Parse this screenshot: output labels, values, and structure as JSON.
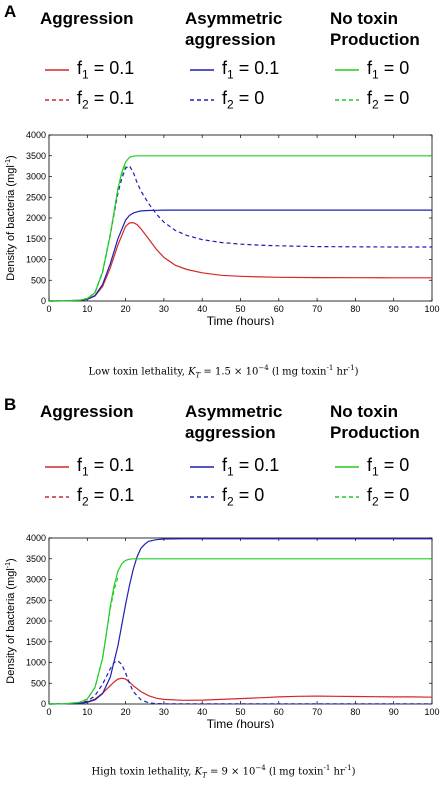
{
  "panels": [
    {
      "letter": "A",
      "groups": [
        {
          "title_lines": [
            "Aggression"
          ],
          "entries": [
            {
              "label": "f1 = 0.1",
              "sub": "1",
              "value": "0.1",
              "color": "#d62728",
              "dash": false
            },
            {
              "label": "f2 = 0.1",
              "sub": "2",
              "value": "0.1",
              "color": "#d62728",
              "dash": true
            }
          ]
        },
        {
          "title_lines": [
            "Asymmetric",
            "aggression"
          ],
          "entries": [
            {
              "label": "f1 = 0.1",
              "sub": "1",
              "value": "0.1",
              "color": "#1f1fb4",
              "dash": false
            },
            {
              "label": "f2 = 0",
              "sub": "2",
              "value": "0",
              "color": "#1f1fb4",
              "dash": true
            }
          ]
        },
        {
          "title_lines": [
            "No toxin",
            "Production"
          ],
          "entries": [
            {
              "label": "f1 = 0",
              "sub": "1",
              "value": "0",
              "color": "#22cc22",
              "dash": false
            },
            {
              "label": "f2 = 0",
              "sub": "2",
              "value": "0",
              "color": "#22cc22",
              "dash": true
            }
          ]
        }
      ],
      "caption": "Low toxin lethality, K_T = 1.5 × 10^-4 (l mg toxin^-1 hr^-1)",
      "caption_parts": {
        "pre": "Low toxin lethality, ",
        "k": "K",
        "ksub": "T",
        "mid": " = 1.5 × 10",
        "exp": "−4",
        "post1": " (l mg toxin",
        "exp2": "-1",
        "mid2": " hr",
        "exp3": "-1",
        "post2": ")"
      }
    },
    {
      "letter": "B",
      "groups": [
        {
          "title_lines": [
            "Aggression"
          ],
          "entries": [
            {
              "label": "f1 = 0.1",
              "sub": "1",
              "value": "0.1",
              "color": "#d62728",
              "dash": false
            },
            {
              "label": "f2 = 0.1",
              "sub": "2",
              "value": "0.1",
              "color": "#d62728",
              "dash": true
            }
          ]
        },
        {
          "title_lines": [
            "Asymmetric",
            "aggression"
          ],
          "entries": [
            {
              "label": "f1 = 0.1",
              "sub": "1",
              "value": "0.1",
              "color": "#1f1fb4",
              "dash": false
            },
            {
              "label": "f2 = 0",
              "sub": "2",
              "value": "0",
              "color": "#1f1fb4",
              "dash": true
            }
          ]
        },
        {
          "title_lines": [
            "No toxin",
            "Production"
          ],
          "entries": [
            {
              "label": "f1 = 0",
              "sub": "1",
              "value": "0",
              "color": "#22cc22",
              "dash": false
            },
            {
              "label": "f2 = 0",
              "sub": "2",
              "value": "0",
              "color": "#22cc22",
              "dash": true
            }
          ]
        }
      ],
      "caption": "High toxin lethality, K_T = 9 × 10^-4 (l mg toxin^-1 hr^-1)",
      "caption_parts": {
        "pre": "High toxin lethality, ",
        "k": "K",
        "ksub": "T",
        "mid": " = 9 × 10",
        "exp": "−4",
        "post1": " (l mg toxin",
        "exp2": "-1",
        "mid2": " hr",
        "exp3": "-1",
        "post2": ")"
      }
    }
  ],
  "chart_data": [
    {
      "type": "line",
      "xlabel": "Time (hours)",
      "ylabel": "Density of bacteria (mgl",
      "ylabel_sup": "-1",
      "ylabel_close": ")",
      "xlim": [
        0,
        100
      ],
      "ylim": [
        0,
        4000
      ],
      "xticks": [
        0,
        10,
        20,
        30,
        40,
        50,
        60,
        70,
        80,
        90,
        100
      ],
      "yticks": [
        0,
        500,
        1000,
        1500,
        2000,
        2500,
        3000,
        3500,
        4000
      ],
      "series": [
        {
          "name": "Aggression",
          "color": "#d62728",
          "dash": false,
          "x": [
            0,
            4,
            8,
            10,
            12,
            14,
            16,
            18,
            20,
            21,
            22,
            23,
            24,
            26,
            28,
            30,
            33,
            36,
            40,
            45,
            50,
            55,
            60,
            70,
            80,
            90,
            100
          ],
          "y": [
            0,
            3,
            15,
            40,
            120,
            350,
            800,
            1350,
            1800,
            1880,
            1890,
            1840,
            1740,
            1500,
            1250,
            1050,
            860,
            760,
            680,
            620,
            595,
            580,
            570,
            565,
            562,
            560,
            558
          ]
        },
        {
          "name": "Asymmetric aggression",
          "color": "#1f1fb4",
          "dash": false,
          "x": [
            0,
            4,
            8,
            10,
            12,
            14,
            16,
            18,
            20,
            21,
            22,
            23,
            24,
            26,
            28,
            30,
            35,
            40,
            50,
            60,
            70,
            80,
            90,
            100
          ],
          "y": [
            0,
            3,
            15,
            40,
            130,
            400,
            900,
            1500,
            1950,
            2060,
            2120,
            2150,
            2170,
            2180,
            2185,
            2190,
            2190,
            2190,
            2190,
            2190,
            2190,
            2190,
            2190,
            2190
          ]
        },
        {
          "name": "Asymmetric aggression",
          "color": "#1f1fb4",
          "dash": true,
          "x": [
            0,
            4,
            8,
            10,
            12,
            14,
            16,
            18,
            19,
            20,
            21,
            22,
            23,
            24,
            26,
            28,
            30,
            33,
            36,
            40,
            45,
            50,
            55,
            60,
            70,
            80,
            90,
            100
          ],
          "y": [
            0,
            3,
            20,
            60,
            200,
            700,
            1600,
            2600,
            2950,
            3200,
            3260,
            3100,
            2850,
            2650,
            2350,
            2100,
            1900,
            1700,
            1580,
            1480,
            1410,
            1370,
            1345,
            1330,
            1310,
            1305,
            1300,
            1300
          ]
        },
        {
          "name": "No toxin Production",
          "color": "#22cc22",
          "dash": false,
          "x": [
            0,
            4,
            8,
            10,
            12,
            14,
            16,
            18,
            19,
            20,
            21,
            22,
            23,
            24,
            26,
            30,
            40,
            50,
            60,
            70,
            80,
            90,
            100
          ],
          "y": [
            0,
            3,
            20,
            60,
            200,
            700,
            1600,
            2700,
            3100,
            3350,
            3460,
            3490,
            3500,
            3500,
            3500,
            3500,
            3500,
            3500,
            3500,
            3500,
            3500,
            3500,
            3500
          ]
        },
        {
          "name": "No toxin Production",
          "color": "#22cc22",
          "dash": true,
          "x": [
            0,
            4,
            8,
            10,
            12,
            14,
            16,
            18,
            19,
            20
          ],
          "y": [
            0,
            3,
            20,
            60,
            200,
            700,
            1600,
            2700,
            3050,
            3250
          ]
        }
      ]
    },
    {
      "type": "line",
      "xlabel": "Time (hours)",
      "ylabel": "Density of bacteria (mgl",
      "ylabel_sup": "-1",
      "ylabel_close": ")",
      "xlim": [
        0,
        100
      ],
      "ylim": [
        0,
        4000
      ],
      "xticks": [
        0,
        10,
        20,
        30,
        40,
        50,
        60,
        70,
        80,
        90,
        100
      ],
      "yticks": [
        0,
        500,
        1000,
        1500,
        2000,
        2500,
        3000,
        3500,
        4000
      ],
      "series": [
        {
          "name": "Aggression",
          "color": "#d62728",
          "dash": false,
          "x": [
            0,
            4,
            8,
            10,
            12,
            14,
            16,
            17,
            18,
            19,
            20,
            21,
            22,
            24,
            26,
            28,
            30,
            35,
            40,
            45,
            50,
            55,
            60,
            65,
            70,
            75,
            80,
            85,
            90,
            95,
            100
          ],
          "y": [
            0,
            5,
            20,
            50,
            120,
            260,
            440,
            530,
            600,
            620,
            600,
            530,
            440,
            300,
            200,
            140,
            110,
            90,
            95,
            110,
            130,
            150,
            170,
            185,
            190,
            185,
            180,
            175,
            170,
            170,
            165
          ]
        },
        {
          "name": "Asymmetric aggression",
          "color": "#1f1fb4",
          "dash": false,
          "x": [
            0,
            4,
            8,
            10,
            12,
            14,
            16,
            18,
            20,
            21,
            22,
            23,
            24,
            25,
            26,
            28,
            30,
            35,
            40,
            50,
            60,
            70,
            80,
            90,
            100
          ],
          "y": [
            0,
            3,
            15,
            40,
            100,
            250,
            650,
            1400,
            2400,
            2850,
            3250,
            3550,
            3750,
            3850,
            3920,
            3960,
            3975,
            3980,
            3980,
            3980,
            3980,
            3980,
            3980,
            3980,
            3980
          ]
        },
        {
          "name": "Asymmetric aggression",
          "color": "#1f1fb4",
          "dash": true,
          "x": [
            0,
            4,
            8,
            10,
            12,
            14,
            16,
            17,
            18,
            19,
            20,
            21,
            22,
            24,
            26,
            28,
            30,
            35,
            40,
            50,
            60,
            70,
            80,
            90,
            100
          ],
          "y": [
            0,
            5,
            25,
            70,
            200,
            480,
            850,
            1000,
            1040,
            950,
            750,
            500,
            300,
            100,
            30,
            10,
            5,
            3,
            2,
            2,
            2,
            2,
            2,
            2,
            2
          ]
        },
        {
          "name": "No toxin Production",
          "color": "#22cc22",
          "dash": false,
          "x": [
            0,
            4,
            8,
            10,
            12,
            14,
            15,
            16,
            17,
            18,
            19,
            20,
            21,
            22,
            24,
            26,
            30,
            40,
            50,
            60,
            70,
            80,
            90,
            100
          ],
          "y": [
            0,
            5,
            40,
            120,
            400,
            1100,
            1700,
            2350,
            2850,
            3200,
            3380,
            3460,
            3490,
            3500,
            3500,
            3500,
            3500,
            3500,
            3500,
            3500,
            3500,
            3500,
            3500,
            3500
          ]
        },
        {
          "name": "No toxin Production",
          "color": "#22cc22",
          "dash": true,
          "x": [
            0,
            4,
            8,
            10,
            12,
            14,
            15,
            16,
            17,
            18
          ],
          "y": [
            0,
            5,
            40,
            120,
            400,
            1100,
            1700,
            2300,
            2750,
            3050
          ]
        }
      ]
    }
  ]
}
